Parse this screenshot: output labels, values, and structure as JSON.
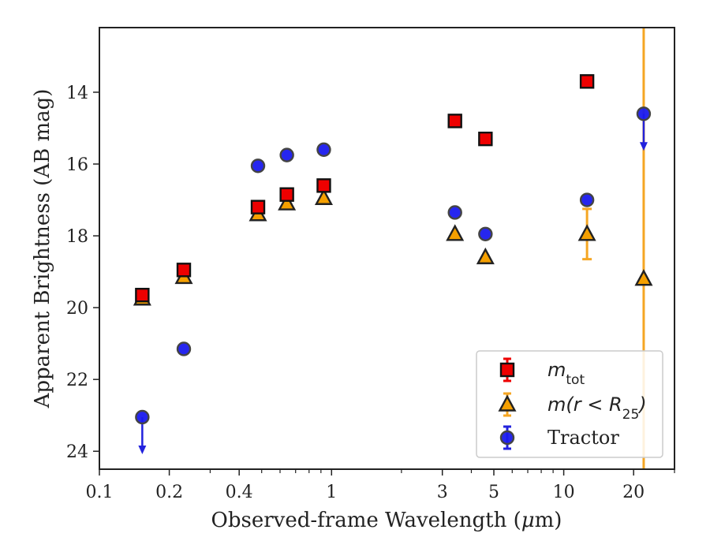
{
  "chart_data": {
    "type": "scatter",
    "xlabel_prefix": "Observed-frame Wavelength (",
    "xlabel_mu": "μ",
    "xlabel_suffix": "m)",
    "ylabel": "Apparent Brightness (AB mag)",
    "xscale": "log",
    "xlim": [
      0.1,
      30
    ],
    "ylim": [
      24.5,
      12.2
    ],
    "y_inverted": true,
    "xticks": [
      {
        "value": 0.1,
        "label": "0.1"
      },
      {
        "value": 0.2,
        "label": "0.2"
      },
      {
        "value": 0.4,
        "label": "0.4"
      },
      {
        "value": 1,
        "label": "1"
      },
      {
        "value": 3,
        "label": "3"
      },
      {
        "value": 5,
        "label": "5"
      },
      {
        "value": 10,
        "label": "10"
      },
      {
        "value": 20,
        "label": "20"
      }
    ],
    "xminor": [
      0.3,
      0.5,
      0.6,
      0.7,
      0.8,
      0.9,
      2,
      4,
      6,
      7,
      8,
      9,
      30
    ],
    "yticks": [
      {
        "value": 14,
        "label": "14"
      },
      {
        "value": 16,
        "label": "16"
      },
      {
        "value": 18,
        "label": "18"
      },
      {
        "value": 20,
        "label": "20"
      },
      {
        "value": 22,
        "label": "22"
      },
      {
        "value": 24,
        "label": "24"
      }
    ],
    "legend_position": "lower-right",
    "series": [
      {
        "id": "mtot",
        "legend_main": "m",
        "legend_sub": "tot",
        "marker": "square",
        "color": "#ee0000",
        "errcolor": "#ee0000",
        "points": [
          {
            "x": 0.153,
            "y": 19.65
          },
          {
            "x": 0.231,
            "y": 18.95
          },
          {
            "x": 0.482,
            "y": 17.2
          },
          {
            "x": 0.642,
            "y": 16.85
          },
          {
            "x": 0.926,
            "y": 16.6
          },
          {
            "x": 3.4,
            "y": 14.8
          },
          {
            "x": 4.6,
            "y": 15.3
          },
          {
            "x": 12.6,
            "y": 13.7
          }
        ]
      },
      {
        "id": "mr25",
        "legend_main": "m(r < R",
        "legend_sub": "25",
        "legend_tail": ")",
        "marker": "triangle",
        "color": "#f5a000",
        "errcolor": "#f5a623",
        "points": [
          {
            "x": 0.153,
            "y": 19.75
          },
          {
            "x": 0.231,
            "y": 19.15
          },
          {
            "x": 0.482,
            "y": 17.4
          },
          {
            "x": 0.642,
            "y": 17.1
          },
          {
            "x": 0.926,
            "y": 16.95
          },
          {
            "x": 3.4,
            "y": 17.95
          },
          {
            "x": 4.6,
            "y": 18.6
          },
          {
            "x": 12.6,
            "y": 17.95,
            "err_lo": 0.7,
            "err_hi": 0.7
          },
          {
            "x": 22.1,
            "y": 19.2,
            "full_err": true
          }
        ]
      },
      {
        "id": "tractor",
        "legend_main": "Tractor",
        "marker": "circle",
        "color": "#1a1aee",
        "errcolor": "#2222dd",
        "points": [
          {
            "x": 0.153,
            "y": 23.05,
            "upper_limit": true
          },
          {
            "x": 0.231,
            "y": 21.15
          },
          {
            "x": 0.482,
            "y": 16.05
          },
          {
            "x": 0.642,
            "y": 15.75
          },
          {
            "x": 0.926,
            "y": 15.6
          },
          {
            "x": 3.4,
            "y": 17.35
          },
          {
            "x": 4.6,
            "y": 17.95
          },
          {
            "x": 12.6,
            "y": 17.0
          },
          {
            "x": 22.1,
            "y": 14.6,
            "upper_limit": true
          }
        ]
      }
    ]
  }
}
